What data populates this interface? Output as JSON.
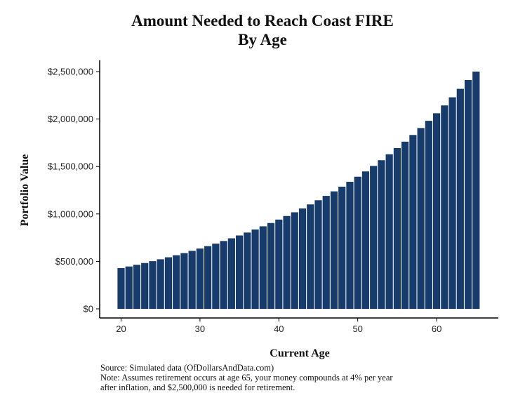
{
  "chart_data": {
    "type": "bar",
    "title": "Amount Needed to Reach Coast FIRE",
    "subtitle": "By Age",
    "xlabel": "Current Age",
    "ylabel": "Portfolio Value",
    "x": [
      20,
      21,
      22,
      23,
      24,
      25,
      26,
      27,
      28,
      29,
      30,
      31,
      32,
      33,
      34,
      35,
      36,
      37,
      38,
      39,
      40,
      41,
      42,
      43,
      44,
      45,
      46,
      47,
      48,
      49,
      50,
      51,
      52,
      53,
      54,
      55,
      56,
      57,
      58,
      59,
      60,
      61,
      62,
      63,
      64,
      65
    ],
    "values": [
      429276,
      446447,
      464305,
      482877,
      502192,
      522280,
      543171,
      564898,
      587494,
      610994,
      635434,
      660851,
      687285,
      714777,
      743368,
      773102,
      804026,
      836187,
      869635,
      904420,
      940597,
      978221,
      1017349,
      1058043,
      1100364,
      1144379,
      1190154,
      1237760,
      1287271,
      1338761,
      1392312,
      1448004,
      1505924,
      1566161,
      1628807,
      1693959,
      1761717,
      1832186,
      1905473,
      1981692,
      2060960,
      2143398,
      2229134,
      2318300,
      2411032,
      2500000
    ],
    "ylim": [
      0,
      2500000
    ],
    "yticks": [
      0,
      500000,
      1000000,
      1500000,
      2000000,
      2500000
    ],
    "ytick_labels": [
      "$0",
      "$500,000",
      "$1,000,000",
      "$1,500,000",
      "$2,000,000",
      "$2,500,000"
    ],
    "xticks": [
      20,
      30,
      40,
      50,
      60
    ],
    "xtick_labels": [
      "20",
      "30",
      "40",
      "50",
      "60"
    ],
    "bar_color": "#173c6b",
    "grid": false
  },
  "caption": {
    "line1": "Source: Simulated data (OfDollarsAndData.com)",
    "line2": "Note: Assumes retirement occurs at age 65, your money compounds at 4% per year",
    "line3": "after inflation, and $2,500,000 is needed for retirement."
  }
}
